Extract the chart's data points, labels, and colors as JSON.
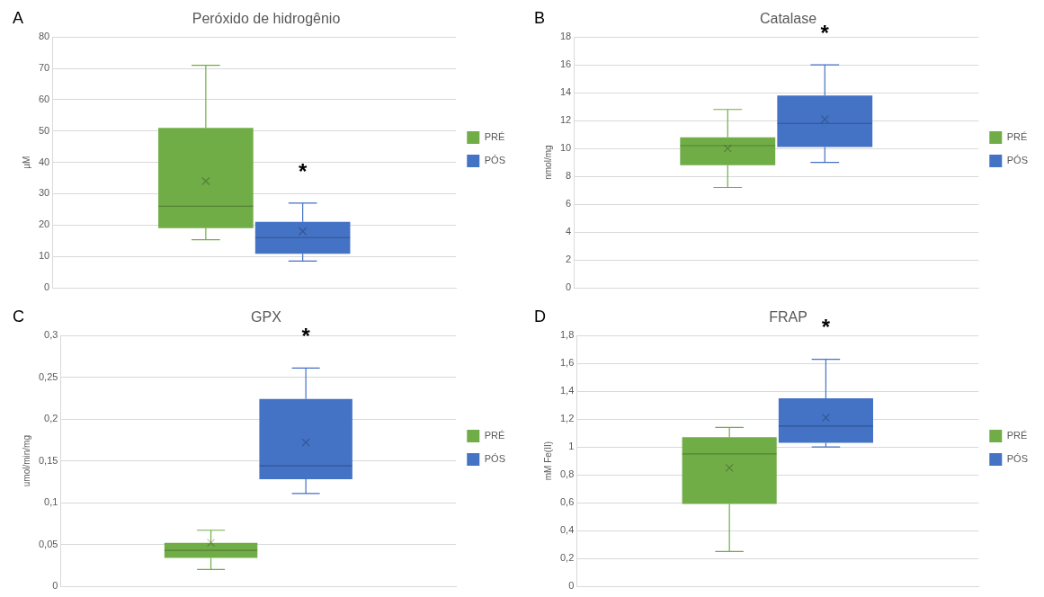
{
  "chart_data": [
    {
      "type": "box",
      "title": "Peróxido de hidrogênio",
      "ylabel": "µM",
      "categories": [
        null
      ],
      "ylim": [
        0,
        80
      ],
      "yticks": [
        0,
        10,
        20,
        30,
        40,
        50,
        60,
        70,
        80
      ],
      "grid": "y",
      "legend": "right",
      "tick_labels": "y",
      "annotations": [
        "A",
        "*"
      ],
      "series": [
        {
          "name": "PRÉ",
          "color": "#70ad47",
          "boxes": [
            {
              "low": 15.3,
              "q1": 19,
              "median": 26,
              "q3": 51,
              "high": 71,
              "mean": 34
            }
          ]
        },
        {
          "name": "PÓS",
          "color": "#4472c4",
          "boxes": [
            {
              "low": 8.5,
              "q1": 10.8,
              "median": 16,
              "q3": 21,
              "high": 27,
              "mean": 18
            }
          ]
        }
      ]
    },
    {
      "type": "box",
      "title": "Catalase",
      "ylabel": "nmol/mg",
      "categories": [
        null
      ],
      "ylim": [
        0,
        18
      ],
      "yticks": [
        0,
        2,
        4,
        6,
        8,
        10,
        12,
        14,
        16,
        18
      ],
      "grid": "y",
      "legend": "right",
      "tick_labels": "y",
      "annotations": [
        "B",
        "*"
      ],
      "series": [
        {
          "name": "PRÉ",
          "color": "#70ad47",
          "boxes": [
            {
              "low": 7.2,
              "q1": 8.8,
              "median": 10.2,
              "q3": 10.8,
              "high": 12.8,
              "mean": 10
            }
          ]
        },
        {
          "name": "PÓS",
          "color": "#4472c4",
          "boxes": [
            {
              "low": 9,
              "q1": 10.1,
              "median": 11.8,
              "q3": 13.8,
              "high": 16,
              "mean": 12.1
            }
          ]
        }
      ]
    },
    {
      "type": "box",
      "title": "GPX",
      "ylabel": "umol/min/mg",
      "categories": [
        null
      ],
      "ylim": [
        0,
        0.3
      ],
      "yticks": [
        0,
        {
          "value": 0.05,
          "label": "0,05"
        },
        {
          "value": 0.1,
          "label": "0,1"
        },
        {
          "value": 0.15,
          "label": "0,15"
        },
        {
          "value": 0.2,
          "label": "0,2"
        },
        {
          "value": 0.25,
          "label": "0,25"
        },
        {
          "value": 0.3,
          "label": "0,3"
        }
      ],
      "grid": "y",
      "legend": "right",
      "tick_labels": "y",
      "annotations": [
        "C",
        "*"
      ],
      "series": [
        {
          "name": "PRÉ",
          "color": "#70ad47",
          "boxes": [
            {
              "low": 0.02,
              "q1": 0.034,
              "median": 0.043,
              "q3": 0.052,
              "high": 0.067,
              "mean": 0.052
            }
          ]
        },
        {
          "name": "PÓS",
          "color": "#4472c4",
          "boxes": [
            {
              "low": 0.111,
              "q1": 0.128,
              "median": 0.144,
              "q3": 0.224,
              "high": 0.261,
              "mean": 0.172
            }
          ]
        }
      ]
    },
    {
      "type": "box",
      "title": "FRAP",
      "ylabel": "mM Fe(II)",
      "categories": [
        null
      ],
      "ylim": [
        0,
        1.8
      ],
      "yticks": [
        0,
        {
          "value": 0.2,
          "label": "0,2"
        },
        {
          "value": 0.4,
          "label": "0,4"
        },
        {
          "value": 0.6,
          "label": "0,6"
        },
        {
          "value": 0.8,
          "label": "0,8"
        },
        1,
        {
          "value": 1.2,
          "label": "1,2"
        },
        {
          "value": 1.4,
          "label": "1,4"
        },
        {
          "value": 1.6,
          "label": "1,6"
        },
        {
          "value": 1.8,
          "label": "1,8"
        }
      ],
      "grid": "y",
      "legend": "right",
      "tick_labels": "y",
      "annotations": [
        "D",
        "*"
      ],
      "series": [
        {
          "name": "PRÉ",
          "color": "#70ad47",
          "boxes": [
            {
              "low": 0.25,
              "q1": 0.59,
              "median": 0.95,
              "q3": 1.07,
              "high": 1.14,
              "mean": 0.85
            }
          ]
        },
        {
          "name": "PÓS",
          "color": "#4472c4",
          "boxes": [
            {
              "low": 1.0,
              "q1": 1.03,
              "median": 1.15,
              "q3": 1.35,
              "high": 1.63,
              "mean": 1.21
            }
          ]
        }
      ]
    }
  ]
}
